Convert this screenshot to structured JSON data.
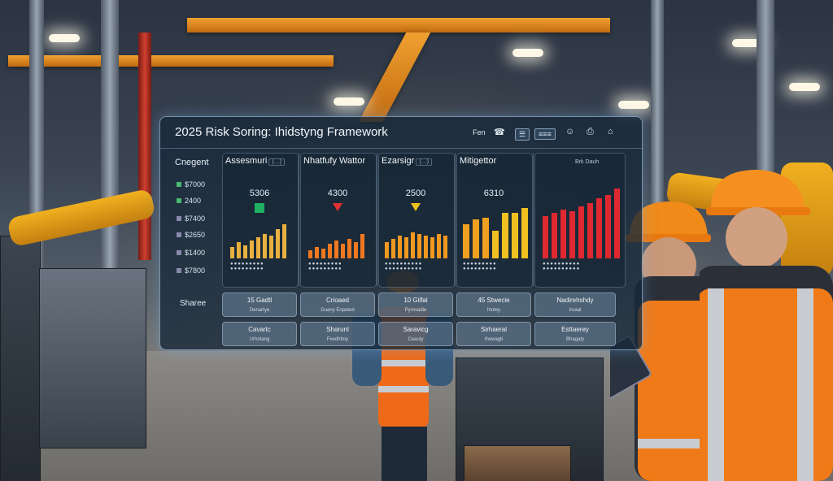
{
  "panel": {
    "title": "2025 Risk Soring: Ihidstyng Framework",
    "toolbar": [
      "Fen",
      "☎",
      "☰",
      "≡≡≡",
      "☺",
      "⎙",
      "⌂"
    ],
    "sidebar_heading": "Cnegent",
    "sidebar_items": [
      "$7000",
      "2400",
      "$7400",
      "$2650",
      "$1400",
      "$7800"
    ],
    "columns": [
      {
        "head": "Assesmuri",
        "sub": "(…)",
        "value": "5306",
        "marker_color": "#20b060",
        "bar_color": "#e8b040"
      },
      {
        "head": "Nhatfufy Wattor",
        "sub": "",
        "value": "4300",
        "marker_color": "#e03030",
        "bar_color": "#f07820"
      },
      {
        "head": "Ezarsigr",
        "sub": "(…)",
        "value": "2500",
        "marker_color": "#f0c020",
        "bar_color": "#f09820"
      },
      {
        "head": "Mitigettor",
        "sub": "",
        "value": "6310",
        "marker_color": "#f0b020",
        "bar_color": "#f0a020"
      },
      {
        "head": "",
        "sub": "",
        "value": "",
        "marker_color": "",
        "bar_color": "#e02830"
      }
    ],
    "last_column_corner": "Brk Dauh",
    "row_label": "Sharee",
    "buttons_row1": [
      {
        "main": "15 Gadtl",
        "sub": "Denartye"
      },
      {
        "main": "Crioaed",
        "sub": "Duany Enpated"
      },
      {
        "main": "10 Gilfal",
        "sub": "Pyrosadie"
      },
      {
        "main": "45 Stwecie",
        "sub": "Ihotey"
      },
      {
        "main": "Nadirehshdy",
        "sub": "Iroaal"
      }
    ],
    "buttons_row2": [
      {
        "main": "Cavartc",
        "sub": "Urhotang"
      },
      {
        "main": "Sharunl",
        "sub": "Fxedhttoy"
      },
      {
        "main": "Saravicg",
        "sub": "Ceauty"
      },
      {
        "main": "Sirhaeral",
        "sub": "Ihowagti"
      },
      {
        "main": "Esttaerey",
        "sub": "Bhagaty"
      }
    ]
  }
}
